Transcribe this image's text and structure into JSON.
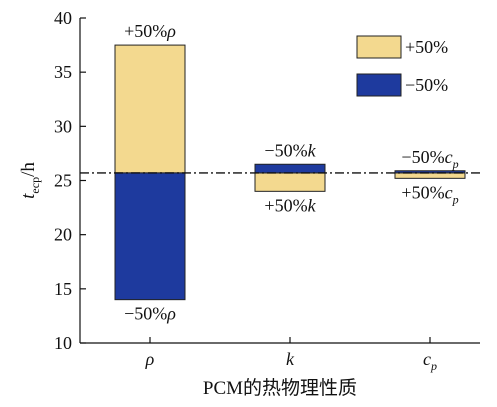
{
  "chart_data": {
    "type": "bar",
    "title": "",
    "xlabel": "PCM的热物理性质",
    "ylabel": "t_ecp/h",
    "ylabel_main": "t",
    "ylabel_sub": "ecp",
    "ylabel_unit": "/h",
    "ylim": [
      10,
      40
    ],
    "yticks": [
      10,
      15,
      20,
      25,
      30,
      35,
      40
    ],
    "baseline": 25.7,
    "categories": [
      "ρ",
      "k",
      "cp"
    ],
    "category_labels": [
      {
        "main": "ρ",
        "sub": ""
      },
      {
        "main": "k",
        "sub": ""
      },
      {
        "main": "c",
        "sub": "p"
      }
    ],
    "series": [
      {
        "name": "+50%",
        "color": "#F3D98F",
        "values": [
          37.5,
          24.0,
          25.2
        ],
        "labels": [
          {
            "prefix": "+50%",
            "sym": "ρ",
            "sub": ""
          },
          {
            "prefix": "+50%",
            "sym": "k",
            "sub": ""
          },
          {
            "prefix": "+50%",
            "sym": "c",
            "sub": "p"
          }
        ]
      },
      {
        "name": "−50%",
        "color": "#1E3A9E",
        "values": [
          14.0,
          26.5,
          25.9
        ],
        "labels": [
          {
            "prefix": "−50%",
            "sym": "ρ",
            "sub": ""
          },
          {
            "prefix": "−50%",
            "sym": "k",
            "sub": ""
          },
          {
            "prefix": "−50%",
            "sym": "c",
            "sub": "p"
          }
        ]
      }
    ],
    "legend": {
      "position": "top-right",
      "items": [
        {
          "label": "+50%",
          "color": "#F3D98F"
        },
        {
          "label": "−50%",
          "color": "#1E3A9E"
        }
      ]
    },
    "grid": false
  }
}
